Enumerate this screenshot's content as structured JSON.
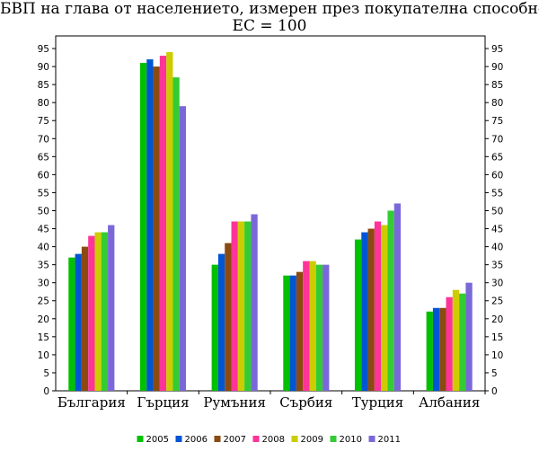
{
  "chart_data": {
    "type": "bar",
    "title": "БВП на глава от населението, измерен през покупателна способност",
    "subtitle": "ЕС = 100",
    "categories": [
      "България",
      "Гърция",
      "Румъния",
      "Сърбия",
      "Турция",
      "Албания"
    ],
    "series": [
      {
        "name": "2005",
        "color": "#00C000",
        "values": [
          37,
          91,
          35,
          32,
          42,
          22
        ]
      },
      {
        "name": "2006",
        "color": "#0055D4",
        "values": [
          38,
          92,
          38,
          32,
          44,
          23
        ]
      },
      {
        "name": "2007",
        "color": "#8B4A10",
        "values": [
          40,
          90,
          41,
          33,
          45,
          23
        ]
      },
      {
        "name": "2008",
        "color": "#FF3399",
        "values": [
          43,
          93,
          47,
          36,
          47,
          26
        ]
      },
      {
        "name": "2009",
        "color": "#CCCC00",
        "values": [
          44,
          94,
          47,
          36,
          46,
          28
        ]
      },
      {
        "name": "2010",
        "color": "#33CC33",
        "values": [
          44,
          87,
          47,
          35,
          50,
          27
        ]
      },
      {
        "name": "2011",
        "color": "#7B68D8",
        "values": [
          46,
          79,
          49,
          35,
          52,
          30
        ]
      }
    ],
    "ylim": [
      0,
      95
    ],
    "yticks": [
      "0",
      "5",
      "10",
      "15",
      "20",
      "25",
      "30",
      "35",
      "40",
      "45",
      "50",
      "55",
      "60",
      "65",
      "70",
      "75",
      "80",
      "85",
      "90",
      "95"
    ],
    "grid": false,
    "legend_position": "bottom"
  }
}
